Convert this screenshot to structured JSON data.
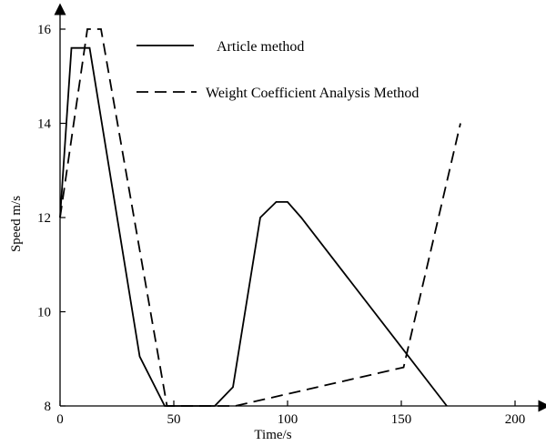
{
  "chart_data": {
    "type": "line",
    "title": "",
    "xlabel": "Time/s",
    "ylabel": "Speed m/s",
    "xlim": [
      0,
      210
    ],
    "ylim": [
      8,
      16.5
    ],
    "x_ticks": [
      0,
      50,
      100,
      150,
      200
    ],
    "y_ticks": [
      8,
      10,
      12,
      14,
      16
    ],
    "grid": false,
    "legend_position": "top-center",
    "series": [
      {
        "name": "Article method",
        "style": "solid",
        "color": "#000000",
        "points": [
          [
            0,
            12.0
          ],
          [
            5,
            15.6
          ],
          [
            13,
            15.6
          ],
          [
            35,
            9.05
          ],
          [
            46,
            8.0
          ],
          [
            68,
            8.0
          ],
          [
            76,
            8.4
          ],
          [
            88,
            12.0
          ],
          [
            95,
            12.33
          ],
          [
            100,
            12.33
          ],
          [
            106,
            12.0
          ],
          [
            170,
            8.0
          ]
        ]
      },
      {
        "name": "Weight Coefficient Analysis Method",
        "style": "dashed",
        "color": "#000000",
        "points": [
          [
            0,
            12.0
          ],
          [
            12,
            16.0
          ],
          [
            18,
            16.0
          ],
          [
            47,
            8.0
          ],
          [
            77,
            8.0
          ],
          [
            151,
            8.82
          ],
          [
            176,
            14.0
          ]
        ]
      }
    ]
  }
}
